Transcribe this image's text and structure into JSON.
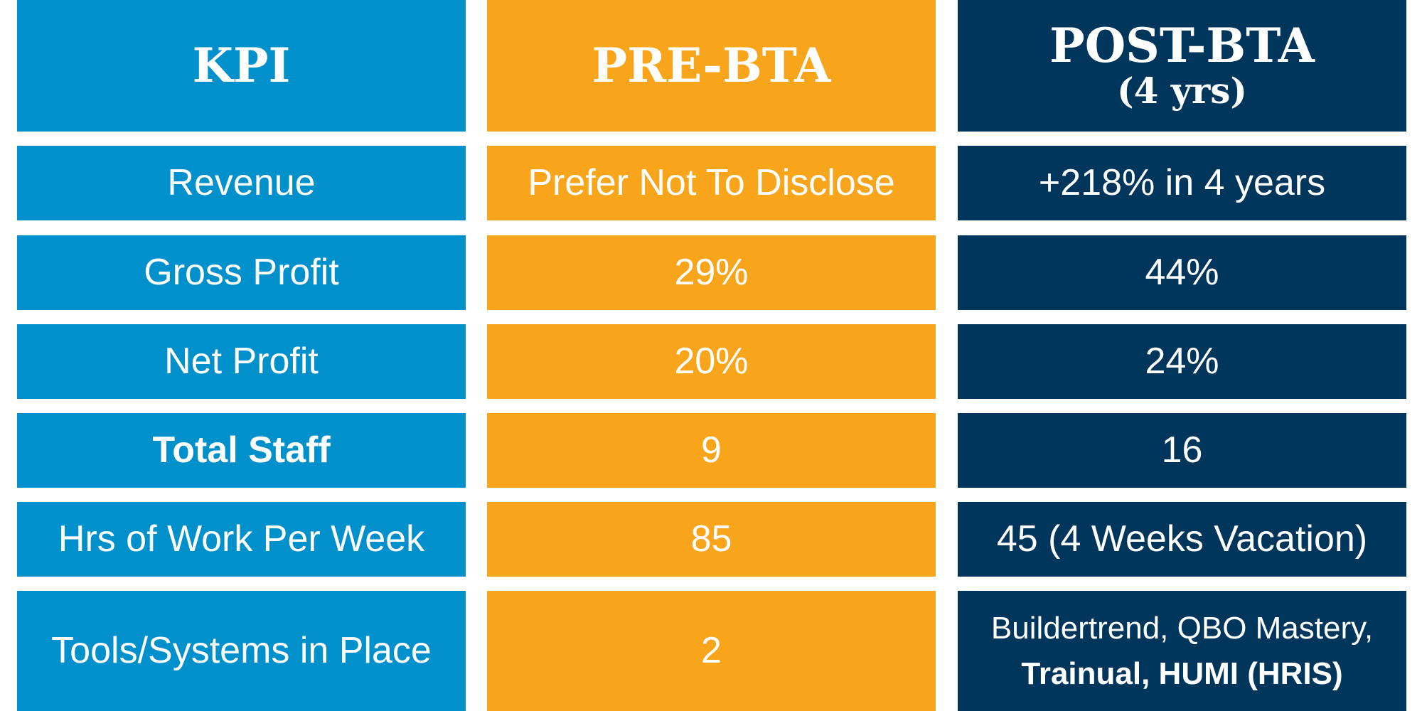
{
  "chart_data": {
    "type": "table",
    "columns": [
      {
        "title": "KPI",
        "subtitle": ""
      },
      {
        "title": "PRE-BTA",
        "subtitle": ""
      },
      {
        "title": "POST-BTA",
        "subtitle": "(4 yrs)"
      }
    ],
    "rows": [
      {
        "kpi": "Revenue",
        "pre": "Prefer Not To Disclose",
        "post": "+218% in 4 years"
      },
      {
        "kpi": "Gross Profit",
        "pre": "29%",
        "post": "44%"
      },
      {
        "kpi": "Net Profit",
        "pre": "20%",
        "post": "24%"
      },
      {
        "kpi": "Total Staff",
        "pre": "9",
        "post": "16"
      },
      {
        "kpi": "Hrs of Work Per Week",
        "pre": "85",
        "post": "45 (4 Weeks Vacation)"
      },
      {
        "kpi": "Tools/Systems in Place",
        "pre": "2",
        "post": "Buildertrend, QBO Mastery,",
        "post_line2": "Trainual, HUMI (HRIS)"
      }
    ],
    "colors": {
      "kpi": "#0090cc",
      "pre": "#f9a51b",
      "post": "#00365c",
      "text": "#ffffff"
    }
  }
}
